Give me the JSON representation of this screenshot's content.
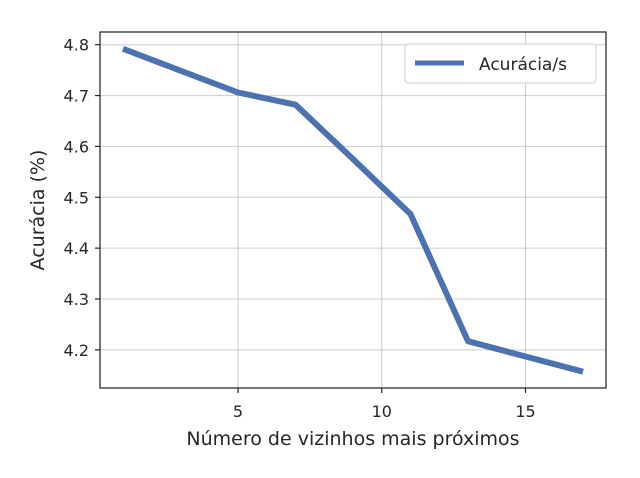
{
  "chart_data": {
    "type": "line",
    "xlabel": "Número de vizinhos mais próximos",
    "ylabel": "Acurácia (%)",
    "xlim": [
      0.2,
      17.8
    ],
    "ylim": [
      4.125,
      4.825
    ],
    "x_ticks": [
      5,
      10,
      15
    ],
    "y_ticks": [
      4.2,
      4.3,
      4.4,
      4.5,
      4.6,
      4.7,
      4.8
    ],
    "x_tick_labels": [
      "5",
      "10",
      "15"
    ],
    "y_tick_labels": [
      "4.2",
      "4.3",
      "4.4",
      "4.5",
      "4.6",
      "4.7",
      "4.8"
    ],
    "grid": true,
    "legend_position": "top-right",
    "series": [
      {
        "name": "Acurácia/s",
        "color": "#4c72b0",
        "x": [
          1,
          3,
          5,
          7,
          9,
          11,
          13,
          15,
          17
        ],
        "y": [
          4.792,
          4.749,
          4.706,
          4.682,
          4.575,
          4.467,
          4.217,
          4.187,
          4.157
        ]
      }
    ]
  }
}
